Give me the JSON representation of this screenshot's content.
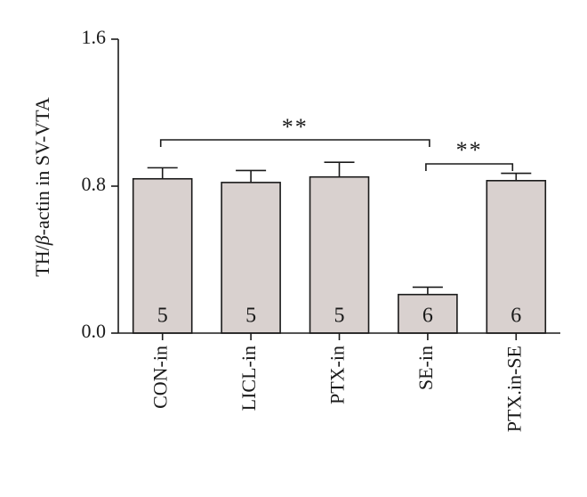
{
  "chart_data": {
    "type": "bar",
    "title": "",
    "ylabel": "TH/β-actin in SV-VTA",
    "ylabel_parts": [
      "TH/",
      "β",
      "-actin in SV-VTA"
    ],
    "xlabel": "",
    "ylim": [
      0.0,
      1.6
    ],
    "yticks": [
      "0.0",
      "0.8",
      "1.6"
    ],
    "ytick_values": [
      0.0,
      0.8,
      1.6
    ],
    "categories": [
      "CON-in",
      "LICL-in",
      "PTX-in",
      "SE-in",
      "PTX.in-SE"
    ],
    "values": [
      0.84,
      0.82,
      0.85,
      0.21,
      0.83
    ],
    "errors": [
      0.06,
      0.065,
      0.08,
      0.04,
      0.04
    ],
    "n": [
      "5",
      "5",
      "5",
      "6",
      "6"
    ],
    "bar_color": "#d9d1cf",
    "significance": [
      {
        "from": "CON-in",
        "to": "SE-in",
        "label": "**"
      },
      {
        "from": "SE-in",
        "to": "PTX.in-SE",
        "label": "**"
      }
    ],
    "grid": false,
    "legend": "none"
  }
}
